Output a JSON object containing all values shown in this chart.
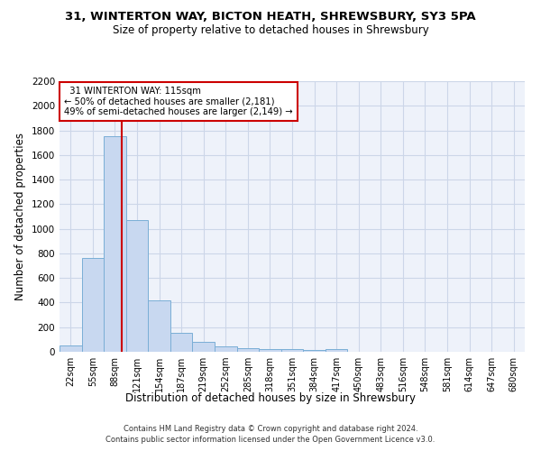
{
  "title": "31, WINTERTON WAY, BICTON HEATH, SHREWSBURY, SY3 5PA",
  "subtitle": "Size of property relative to detached houses in Shrewsbury",
  "xlabel": "Distribution of detached houses by size in Shrewsbury",
  "ylabel": "Number of detached properties",
  "footer1": "Contains HM Land Registry data © Crown copyright and database right 2024.",
  "footer2": "Contains public sector information licensed under the Open Government Licence v3.0.",
  "bar_labels": [
    "22sqm",
    "55sqm",
    "88sqm",
    "121sqm",
    "154sqm",
    "187sqm",
    "219sqm",
    "252sqm",
    "285sqm",
    "318sqm",
    "351sqm",
    "384sqm",
    "417sqm",
    "450sqm",
    "483sqm",
    "516sqm",
    "548sqm",
    "581sqm",
    "614sqm",
    "647sqm",
    "680sqm"
  ],
  "bar_values": [
    55,
    760,
    1750,
    1070,
    415,
    155,
    80,
    45,
    30,
    20,
    20,
    15,
    20,
    0,
    0,
    0,
    0,
    0,
    0,
    0,
    0
  ],
  "bar_color": "#c8d8f0",
  "bar_edge_color": "#7aaed6",
  "grid_color": "#ccd6e8",
  "bg_color": "#eef2fa",
  "vline_color": "#cc0000",
  "annotation_text": "  31 WINTERTON WAY: 115sqm\n← 50% of detached houses are smaller (2,181)\n49% of semi-detached houses are larger (2,149) →",
  "annotation_box_color": "#ffffff",
  "annotation_box_edge": "#cc0000",
  "ylim": [
    0,
    2200
  ],
  "yticks": [
    0,
    200,
    400,
    600,
    800,
    1000,
    1200,
    1400,
    1600,
    1800,
    2000,
    2200
  ]
}
